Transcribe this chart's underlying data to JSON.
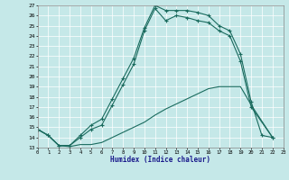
{
  "title": "",
  "xlabel": "Humidex (Indice chaleur)",
  "xlim": [
    0,
    23
  ],
  "ylim": [
    13,
    27
  ],
  "xticks": [
    0,
    1,
    2,
    3,
    4,
    5,
    6,
    7,
    8,
    9,
    10,
    11,
    12,
    13,
    14,
    15,
    16,
    17,
    18,
    19,
    20,
    21,
    22,
    23
  ],
  "yticks": [
    13,
    14,
    15,
    16,
    17,
    18,
    19,
    20,
    21,
    22,
    23,
    24,
    25,
    26,
    27
  ],
  "background_color": "#c5e8e8",
  "line_color": "#1a6b5e",
  "grid_color": "#ffffff",
  "line1_x": [
    0,
    1,
    2,
    3,
    4,
    5,
    6,
    7,
    8,
    9,
    10,
    11,
    12,
    13,
    14,
    15,
    16,
    17,
    18,
    19,
    20,
    21,
    22
  ],
  "line1_y": [
    14.8,
    14.2,
    13.2,
    13.2,
    14.2,
    15.2,
    15.8,
    17.8,
    19.8,
    21.8,
    24.8,
    27.0,
    26.5,
    26.5,
    26.5,
    26.3,
    26.0,
    25.0,
    24.5,
    22.2,
    17.5,
    14.2,
    14.0
  ],
  "line2_x": [
    0,
    1,
    2,
    3,
    4,
    5,
    6,
    7,
    8,
    9,
    10,
    11,
    12,
    13,
    14,
    15,
    16,
    17,
    18,
    19,
    20,
    22
  ],
  "line2_y": [
    14.8,
    14.2,
    13.2,
    13.2,
    14.0,
    14.8,
    15.2,
    17.2,
    19.2,
    21.2,
    24.5,
    26.7,
    25.5,
    26.0,
    25.8,
    25.5,
    25.3,
    24.5,
    24.0,
    21.5,
    17.0,
    14.0
  ],
  "line3_x": [
    0,
    1,
    2,
    3,
    4,
    5,
    6,
    7,
    8,
    9,
    10,
    11,
    12,
    13,
    14,
    15,
    16,
    17,
    18,
    19,
    20,
    22
  ],
  "line3_y": [
    14.8,
    14.2,
    13.2,
    13.1,
    13.3,
    13.3,
    13.5,
    14.0,
    14.5,
    15.0,
    15.5,
    16.2,
    16.8,
    17.3,
    17.8,
    18.3,
    18.8,
    19.0,
    19.0,
    19.0,
    17.2,
    14.0
  ]
}
